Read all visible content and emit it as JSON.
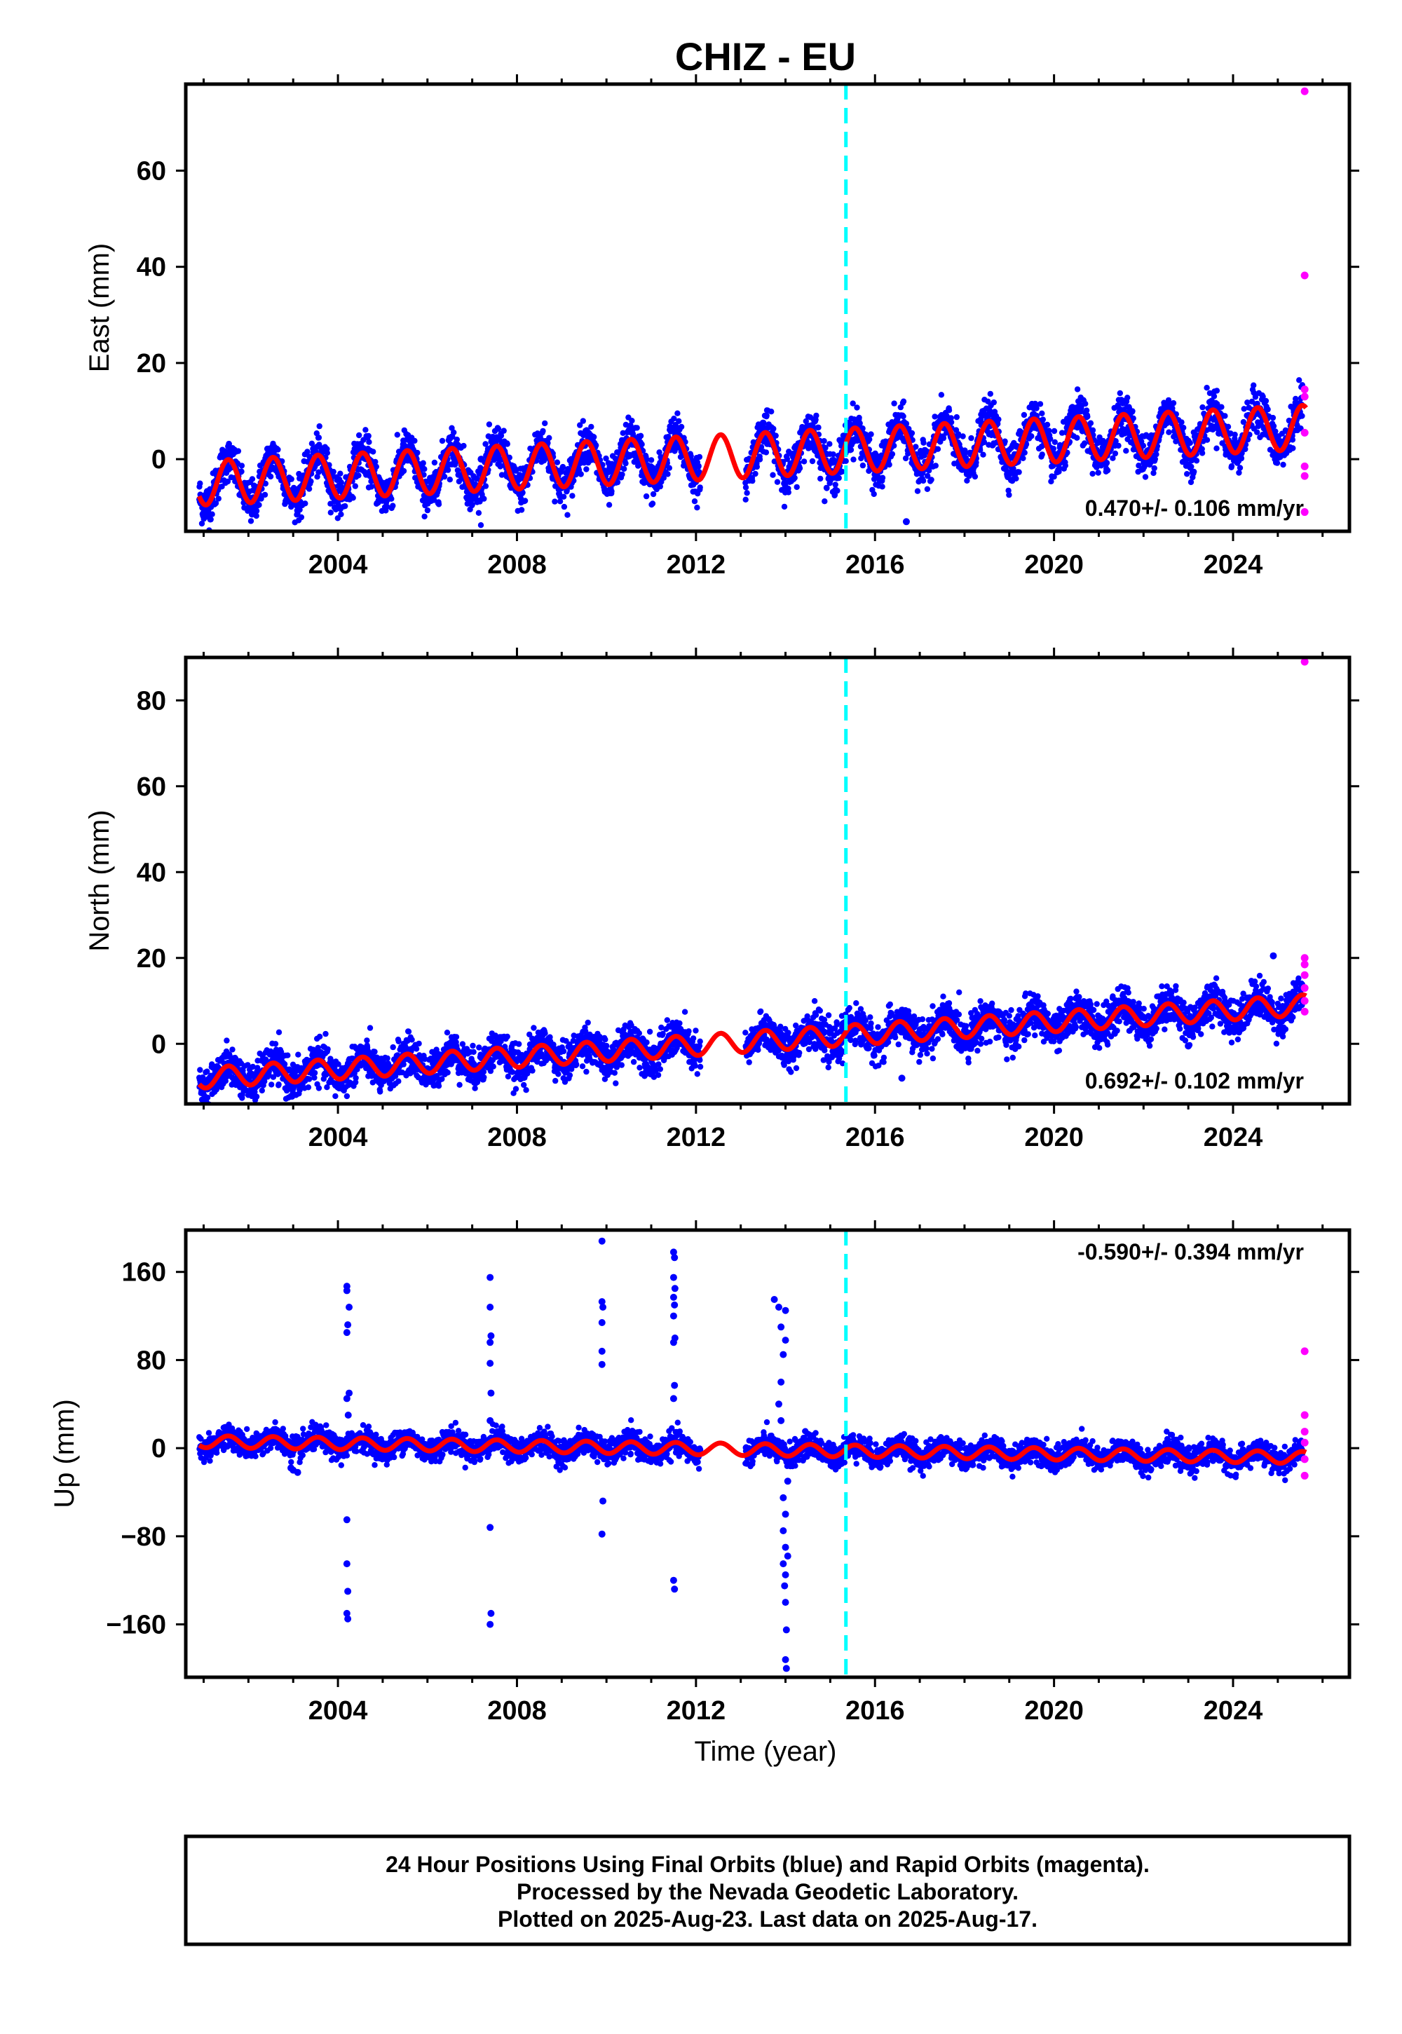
{
  "colors": {
    "final": "#0000ff",
    "rapid": "#ff00ff",
    "model": "#ff0000",
    "reference_line": "#00ffff",
    "frame": "#000000"
  },
  "footer": {
    "line1": "24 Hour Positions Using Final Orbits (blue) and Rapid Orbits (magenta).",
    "line2": "Processed by the Nevada Geodetic Laboratory.",
    "line3": "Plotted on 2025-Aug-23. Last data on 2025-Aug-17."
  },
  "chart_data": [
    {
      "type": "scatter",
      "title": "CHIZ - EU",
      "ylabel": "East (mm)",
      "xlabel": "",
      "xlim": [
        2000.6,
        2026.6
      ],
      "ylim": [
        -15,
        78
      ],
      "xticks": [
        2004,
        2008,
        2012,
        2016,
        2020,
        2024
      ],
      "yticks": [
        0,
        20,
        40,
        60
      ],
      "reference_line_x": 2015.35,
      "rate_label": "0.470+/- 0.106 mm/yr",
      "rate_label_position": "bottom-right",
      "data_span": [
        2000.9,
        2025.63
      ],
      "data_gap": [
        2012.1,
        2013.1
      ],
      "model": {
        "intercept_mm": -5.0,
        "rate_mm_per_yr": 0.47,
        "annual_amplitude_mm": 4.6,
        "peak_fraction_of_year": 0.55
      },
      "rapid_outliers": [
        {
          "x": 2025.6,
          "y": 76.5
        },
        {
          "x": 2025.6,
          "y": 38.2
        },
        {
          "x": 2025.6,
          "y": 14.5
        },
        {
          "x": 2025.6,
          "y": 13.0
        },
        {
          "x": 2025.6,
          "y": 5.5
        },
        {
          "x": 2025.6,
          "y": -1.5
        },
        {
          "x": 2025.6,
          "y": -3.5
        },
        {
          "x": 2025.6,
          "y": -11.0
        }
      ],
      "final_outliers": [
        {
          "x": 2016.7,
          "y": -13.0
        },
        {
          "x": 2007.2,
          "y": 0.0
        },
        {
          "x": 2013.5,
          "y": 7.5
        }
      ]
    },
    {
      "type": "scatter",
      "title": "",
      "ylabel": "North (mm)",
      "xlabel": "",
      "xlim": [
        2000.6,
        2026.6
      ],
      "ylim": [
        -14,
        90
      ],
      "xticks": [
        2004,
        2008,
        2012,
        2016,
        2020,
        2024
      ],
      "yticks": [
        0,
        20,
        40,
        60,
        80
      ],
      "reference_line_x": 2015.35,
      "rate_label": "0.692+/- 0.102 mm/yr",
      "rate_label_position": "bottom-right",
      "data_span": [
        2000.9,
        2025.63
      ],
      "data_gap": [
        2012.1,
        2013.1
      ],
      "model": {
        "intercept_mm": -8.0,
        "rate_mm_per_yr": 0.69,
        "annual_amplitude_mm": 2.4,
        "peak_fraction_of_year": 0.55
      },
      "rapid_outliers": [
        {
          "x": 2025.6,
          "y": 89.0
        },
        {
          "x": 2025.6,
          "y": 20.0
        },
        {
          "x": 2025.6,
          "y": 18.5
        },
        {
          "x": 2025.6,
          "y": 16.0
        },
        {
          "x": 2025.6,
          "y": 13.0
        },
        {
          "x": 2025.6,
          "y": 10.0
        },
        {
          "x": 2025.6,
          "y": 7.5
        }
      ],
      "final_outliers": [
        {
          "x": 2024.9,
          "y": 20.5
        },
        {
          "x": 2016.6,
          "y": -8.0
        },
        {
          "x": 2023.0,
          "y": -0.5
        }
      ]
    },
    {
      "type": "scatter",
      "title": "",
      "ylabel": "Up (mm)",
      "xlabel": "Time (year)",
      "xlim": [
        2000.6,
        2026.6
      ],
      "ylim": [
        -208,
        198
      ],
      "xticks": [
        2004,
        2008,
        2012,
        2016,
        2020,
        2024
      ],
      "yticks": [
        -160,
        -80,
        0,
        80,
        160
      ],
      "reference_line_x": 2015.35,
      "rate_label": "-0.590+/- 0.394 mm/yr",
      "rate_label_position": "top-right",
      "data_span": [
        2000.9,
        2025.63
      ],
      "data_gap": [
        2012.1,
        2013.1
      ],
      "model": {
        "intercept_mm": 6.0,
        "rate_mm_per_yr": -0.59,
        "annual_amplitude_mm": 5.5,
        "peak_fraction_of_year": 0.55
      },
      "rapid_outliers": [
        {
          "x": 2025.6,
          "y": 88.0
        },
        {
          "x": 2025.6,
          "y": 30.0
        },
        {
          "x": 2025.6,
          "y": 15.0
        },
        {
          "x": 2025.6,
          "y": 5.0
        },
        {
          "x": 2025.6,
          "y": -10.0
        },
        {
          "x": 2025.6,
          "y": -25.0
        }
      ],
      "final_outliers": [
        {
          "x": 2004.2,
          "y": 147
        },
        {
          "x": 2004.2,
          "y": 143
        },
        {
          "x": 2004.25,
          "y": 128
        },
        {
          "x": 2004.22,
          "y": 112
        },
        {
          "x": 2004.2,
          "y": 105
        },
        {
          "x": 2004.25,
          "y": 50
        },
        {
          "x": 2004.2,
          "y": 45
        },
        {
          "x": 2004.23,
          "y": 30
        },
        {
          "x": 2004.2,
          "y": -65
        },
        {
          "x": 2004.2,
          "y": -105
        },
        {
          "x": 2004.22,
          "y": -130
        },
        {
          "x": 2004.2,
          "y": -150
        },
        {
          "x": 2004.22,
          "y": -155
        },
        {
          "x": 2007.4,
          "y": 155
        },
        {
          "x": 2007.4,
          "y": 128
        },
        {
          "x": 2007.42,
          "y": 102
        },
        {
          "x": 2007.4,
          "y": 96
        },
        {
          "x": 2007.4,
          "y": 77
        },
        {
          "x": 2007.42,
          "y": 50
        },
        {
          "x": 2007.4,
          "y": 25
        },
        {
          "x": 2007.4,
          "y": -72
        },
        {
          "x": 2007.42,
          "y": -150
        },
        {
          "x": 2007.4,
          "y": -160
        },
        {
          "x": 2009.9,
          "y": 188
        },
        {
          "x": 2009.9,
          "y": 133
        },
        {
          "x": 2009.92,
          "y": 128
        },
        {
          "x": 2009.9,
          "y": 114
        },
        {
          "x": 2009.9,
          "y": 88
        },
        {
          "x": 2009.9,
          "y": 76
        },
        {
          "x": 2009.92,
          "y": -48
        },
        {
          "x": 2009.9,
          "y": -78
        },
        {
          "x": 2011.5,
          "y": 178
        },
        {
          "x": 2011.52,
          "y": 173
        },
        {
          "x": 2011.5,
          "y": 155
        },
        {
          "x": 2011.53,
          "y": 145
        },
        {
          "x": 2011.5,
          "y": 137
        },
        {
          "x": 2011.52,
          "y": 130
        },
        {
          "x": 2011.5,
          "y": 120
        },
        {
          "x": 2011.53,
          "y": 100
        },
        {
          "x": 2011.5,
          "y": 96
        },
        {
          "x": 2011.52,
          "y": 57
        },
        {
          "x": 2011.5,
          "y": 45
        },
        {
          "x": 2011.5,
          "y": -120
        },
        {
          "x": 2011.52,
          "y": -128
        },
        {
          "x": 2013.75,
          "y": 135
        },
        {
          "x": 2013.85,
          "y": 128
        },
        {
          "x": 2014.0,
          "y": 125
        },
        {
          "x": 2013.9,
          "y": 110
        },
        {
          "x": 2014.0,
          "y": 98
        },
        {
          "x": 2013.95,
          "y": 85
        },
        {
          "x": 2013.9,
          "y": 60
        },
        {
          "x": 2013.85,
          "y": 40
        },
        {
          "x": 2013.9,
          "y": 25
        },
        {
          "x": 2014.05,
          "y": -30
        },
        {
          "x": 2013.95,
          "y": -45
        },
        {
          "x": 2014.0,
          "y": -60
        },
        {
          "x": 2013.95,
          "y": -75
        },
        {
          "x": 2014.0,
          "y": -90
        },
        {
          "x": 2014.05,
          "y": -98
        },
        {
          "x": 2013.95,
          "y": -105
        },
        {
          "x": 2014.0,
          "y": -115
        },
        {
          "x": 2013.98,
          "y": -125
        },
        {
          "x": 2014.0,
          "y": -140
        },
        {
          "x": 2014.02,
          "y": -165
        },
        {
          "x": 2014.0,
          "y": -192
        },
        {
          "x": 2014.02,
          "y": -200
        },
        {
          "x": 2003.0,
          "y": -20
        },
        {
          "x": 2003.1,
          "y": -22
        },
        {
          "x": 2002.95,
          "y": -18
        }
      ]
    }
  ]
}
